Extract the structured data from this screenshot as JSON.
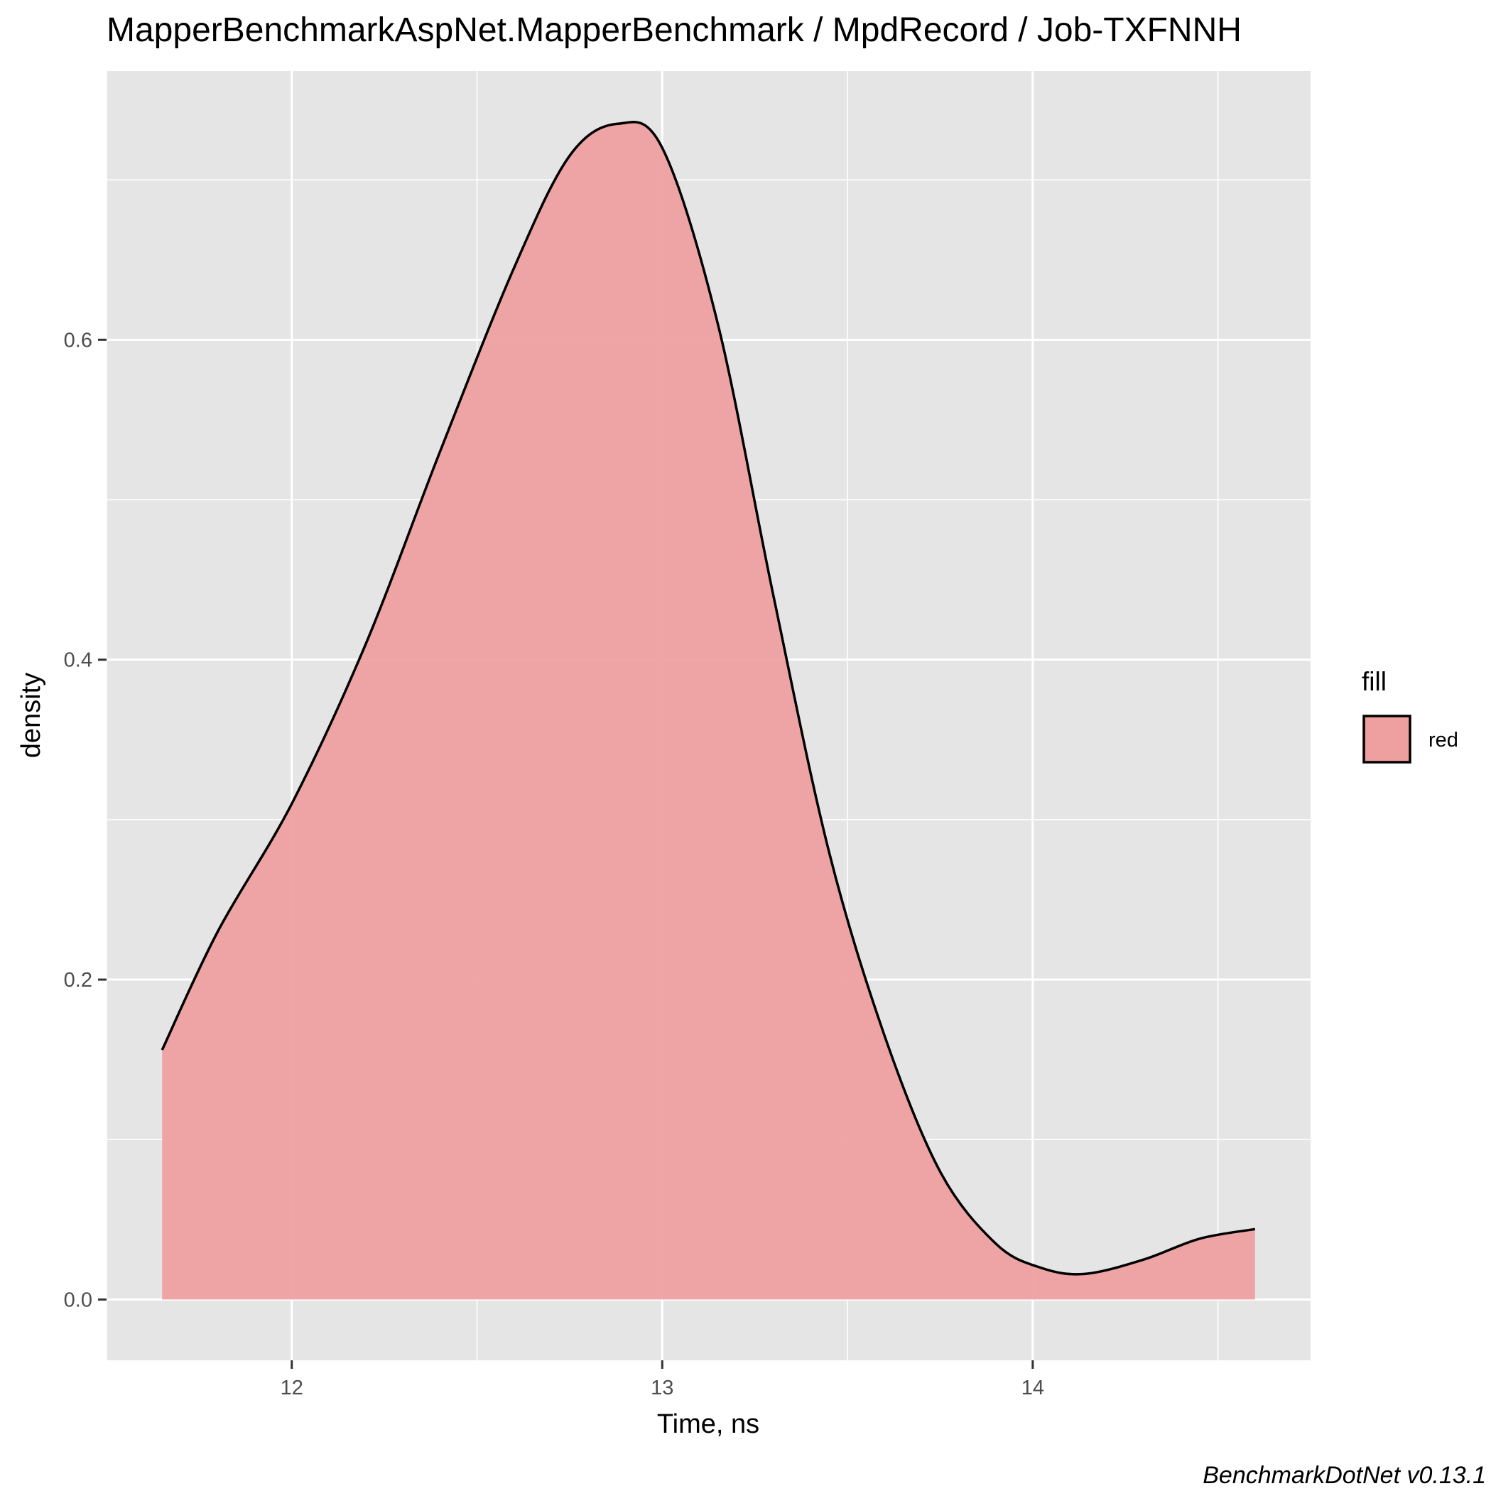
{
  "chart_data": {
    "type": "area",
    "title": "MapperBenchmarkAspNet.MapperBenchmark / MpdRecord / Job-TXFNNH",
    "xlabel": "Time, ns",
    "ylabel": "density",
    "caption": "BenchmarkDotNet v0.13.1",
    "xlim": [
      11.5,
      14.75
    ],
    "ylim": [
      -0.038,
      0.768
    ],
    "x_ticks": [
      12,
      13,
      14
    ],
    "y_ticks": [
      0.0,
      0.2,
      0.4,
      0.6
    ],
    "x_tick_labels": [
      "12",
      "13",
      "14"
    ],
    "y_tick_labels": [
      "0.0",
      "0.2",
      "0.4",
      "0.6"
    ],
    "grid": true,
    "legend": {
      "title": "fill",
      "position": "right",
      "entries": [
        "red"
      ]
    },
    "colors": {
      "fill": "#eea0a0",
      "line": "#000000",
      "panel": "#e5e5e5",
      "grid": "#ffffff"
    },
    "series": [
      {
        "x": [
          11.65,
          11.8,
          12.0,
          12.2,
          12.4,
          12.6,
          12.75,
          12.88,
          13.0,
          13.15,
          13.3,
          13.45,
          13.6,
          13.75,
          13.9,
          14.02,
          14.14,
          14.3,
          14.45,
          14.6
        ],
        "y": [
          0.156,
          0.23,
          0.31,
          0.41,
          0.53,
          0.645,
          0.715,
          0.735,
          0.72,
          0.61,
          0.44,
          0.28,
          0.165,
          0.08,
          0.035,
          0.02,
          0.016,
          0.025,
          0.038,
          0.044
        ]
      }
    ]
  }
}
